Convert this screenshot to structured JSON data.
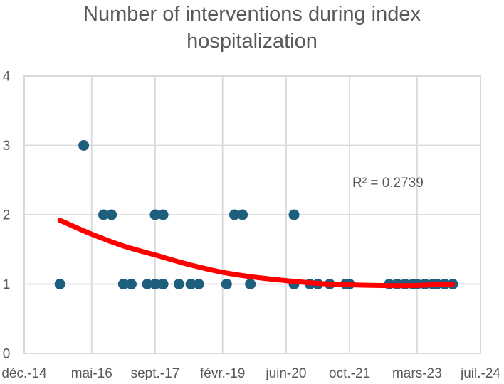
{
  "chart": {
    "title": "Number of interventions during index hospitalization",
    "annotation_r_squared": "R² = 0.2739"
  },
  "colors": {
    "title_text": "#595959",
    "axis_text": "#595959",
    "gridline": "#d9d9d9",
    "plot_border": "#d9d9d9",
    "point": "#1f5f7e",
    "trendline": "#ff0000",
    "background": "#ffffff"
  },
  "chart_data": {
    "type": "scatter",
    "title": "Number of interventions during index hospitalization",
    "xlabel": "",
    "ylabel": "",
    "grid": true,
    "legend": false,
    "x_axis": {
      "type": "date",
      "ticks": [
        {
          "label": "déc.-14",
          "date": "2014-12"
        },
        {
          "label": "mai-16",
          "date": "2016-05"
        },
        {
          "label": "sept.-17",
          "date": "2017-09"
        },
        {
          "label": "févr.-19",
          "date": "2019-02"
        },
        {
          "label": "juin-20",
          "date": "2020-06"
        },
        {
          "label": "oct.-21",
          "date": "2021-10"
        },
        {
          "label": "mars-23",
          "date": "2023-03"
        },
        {
          "label": "juil.-24",
          "date": "2024-07"
        }
      ],
      "range": [
        "2014-12",
        "2024-07"
      ]
    },
    "y_axis": {
      "ticks": [
        0,
        1,
        2,
        3,
        4
      ],
      "range": [
        0,
        4
      ]
    },
    "series": [
      {
        "name": "Number of interventions",
        "points": [
          {
            "date": "2015-09",
            "value": 1
          },
          {
            "date": "2016-03",
            "value": 3
          },
          {
            "date": "2016-08",
            "value": 2
          },
          {
            "date": "2016-10",
            "value": 2
          },
          {
            "date": "2017-01",
            "value": 1
          },
          {
            "date": "2017-03",
            "value": 1
          },
          {
            "date": "2017-07",
            "value": 1
          },
          {
            "date": "2017-09",
            "value": 1
          },
          {
            "date": "2017-09",
            "value": 2
          },
          {
            "date": "2017-11",
            "value": 1
          },
          {
            "date": "2017-11",
            "value": 2
          },
          {
            "date": "2018-03",
            "value": 1
          },
          {
            "date": "2018-06",
            "value": 1
          },
          {
            "date": "2018-08",
            "value": 1
          },
          {
            "date": "2019-03",
            "value": 1
          },
          {
            "date": "2019-05",
            "value": 2
          },
          {
            "date": "2019-07",
            "value": 2
          },
          {
            "date": "2019-09",
            "value": 1
          },
          {
            "date": "2020-08",
            "value": 2
          },
          {
            "date": "2020-08",
            "value": 1
          },
          {
            "date": "2020-12",
            "value": 1
          },
          {
            "date": "2021-02",
            "value": 1
          },
          {
            "date": "2021-05",
            "value": 1
          },
          {
            "date": "2021-09",
            "value": 1
          },
          {
            "date": "2021-10",
            "value": 1
          },
          {
            "date": "2022-08",
            "value": 1
          },
          {
            "date": "2022-10",
            "value": 1
          },
          {
            "date": "2022-12",
            "value": 1
          },
          {
            "date": "2023-02",
            "value": 1
          },
          {
            "date": "2023-03",
            "value": 1
          },
          {
            "date": "2023-05",
            "value": 1
          },
          {
            "date": "2023-07",
            "value": 1
          },
          {
            "date": "2023-08",
            "value": 1
          },
          {
            "date": "2023-10",
            "value": 1
          },
          {
            "date": "2023-12",
            "value": 1
          }
        ]
      }
    ],
    "trendline": {
      "shape": "decaying curve flattening near y=1",
      "r_squared": 0.2739,
      "samples_months_after_start": [
        [
          9,
          1.92
        ],
        [
          17,
          1.72
        ],
        [
          25,
          1.55
        ],
        [
          33,
          1.42
        ],
        [
          41,
          1.29
        ],
        [
          50,
          1.17
        ],
        [
          58,
          1.1
        ],
        [
          66,
          1.05
        ],
        [
          74,
          1.01
        ],
        [
          82,
          0.99
        ],
        [
          90,
          0.98
        ],
        [
          98,
          0.98
        ],
        [
          103,
          0.99
        ],
        [
          108,
          1.0
        ]
      ]
    }
  }
}
